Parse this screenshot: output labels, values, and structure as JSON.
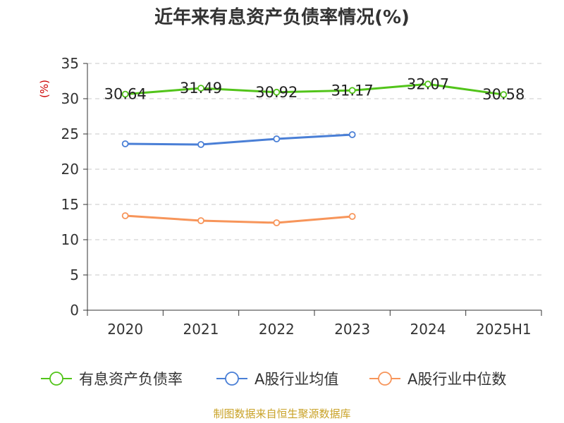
{
  "colors": {
    "debt_ratio": "#52c41a",
    "industry_avg": "#4a7fd6",
    "industry_median": "#f7955a",
    "source": "#c9a227",
    "axis": "#333333",
    "grid": "#c8c8c8",
    "ylabel": "#cc0000"
  },
  "footer": {
    "source": "制图数据来自恒生聚源数据库"
  },
  "chart_data": {
    "type": "line",
    "title": "近年来有息资产负债率情况(%)",
    "ylabel": "(%)",
    "xlabel": "",
    "categories": [
      "2020",
      "2021",
      "2022",
      "2023",
      "2024",
      "2025H1"
    ],
    "ylim": [
      0,
      35
    ],
    "yticks": [
      0,
      5,
      10,
      15,
      20,
      25,
      30,
      35
    ],
    "grid": true,
    "legend_position": "bottom",
    "series": [
      {
        "name": "有息资产负债率",
        "values": [
          30.64,
          31.49,
          30.92,
          31.17,
          32.07,
          30.58
        ],
        "labels": [
          "30.64",
          "31.49",
          "30.92",
          "31.17",
          "32.07",
          "30.58"
        ]
      },
      {
        "name": "A股行业均值",
        "values": [
          23.6,
          23.5,
          24.3,
          24.9,
          null,
          null
        ]
      },
      {
        "name": "A股行业中位数",
        "values": [
          13.4,
          12.7,
          12.4,
          13.3,
          null,
          null
        ]
      }
    ]
  }
}
